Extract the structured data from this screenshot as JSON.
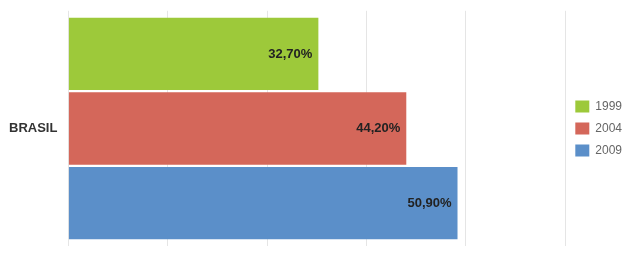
{
  "chart_data": {
    "type": "bar",
    "orientation": "horizontal",
    "categories": [
      "BRASIL"
    ],
    "series": [
      {
        "name": "1999",
        "color": "#9dc93a",
        "values": [
          32.7
        ],
        "value_labels": [
          "32,70%"
        ]
      },
      {
        "name": "2004",
        "color": "#d4675a",
        "values": [
          44.2
        ],
        "value_labels": [
          "44,20%"
        ]
      },
      {
        "name": "2009",
        "color": "#5b8fc9",
        "values": [
          50.9
        ],
        "value_labels": [
          "50,90%"
        ]
      }
    ],
    "xlim": [
      0,
      65
    ],
    "xticks": [
      0,
      13,
      26,
      39,
      52,
      65
    ],
    "grid": true,
    "legend": "right",
    "data_labels": true,
    "tick_labels": "y"
  }
}
